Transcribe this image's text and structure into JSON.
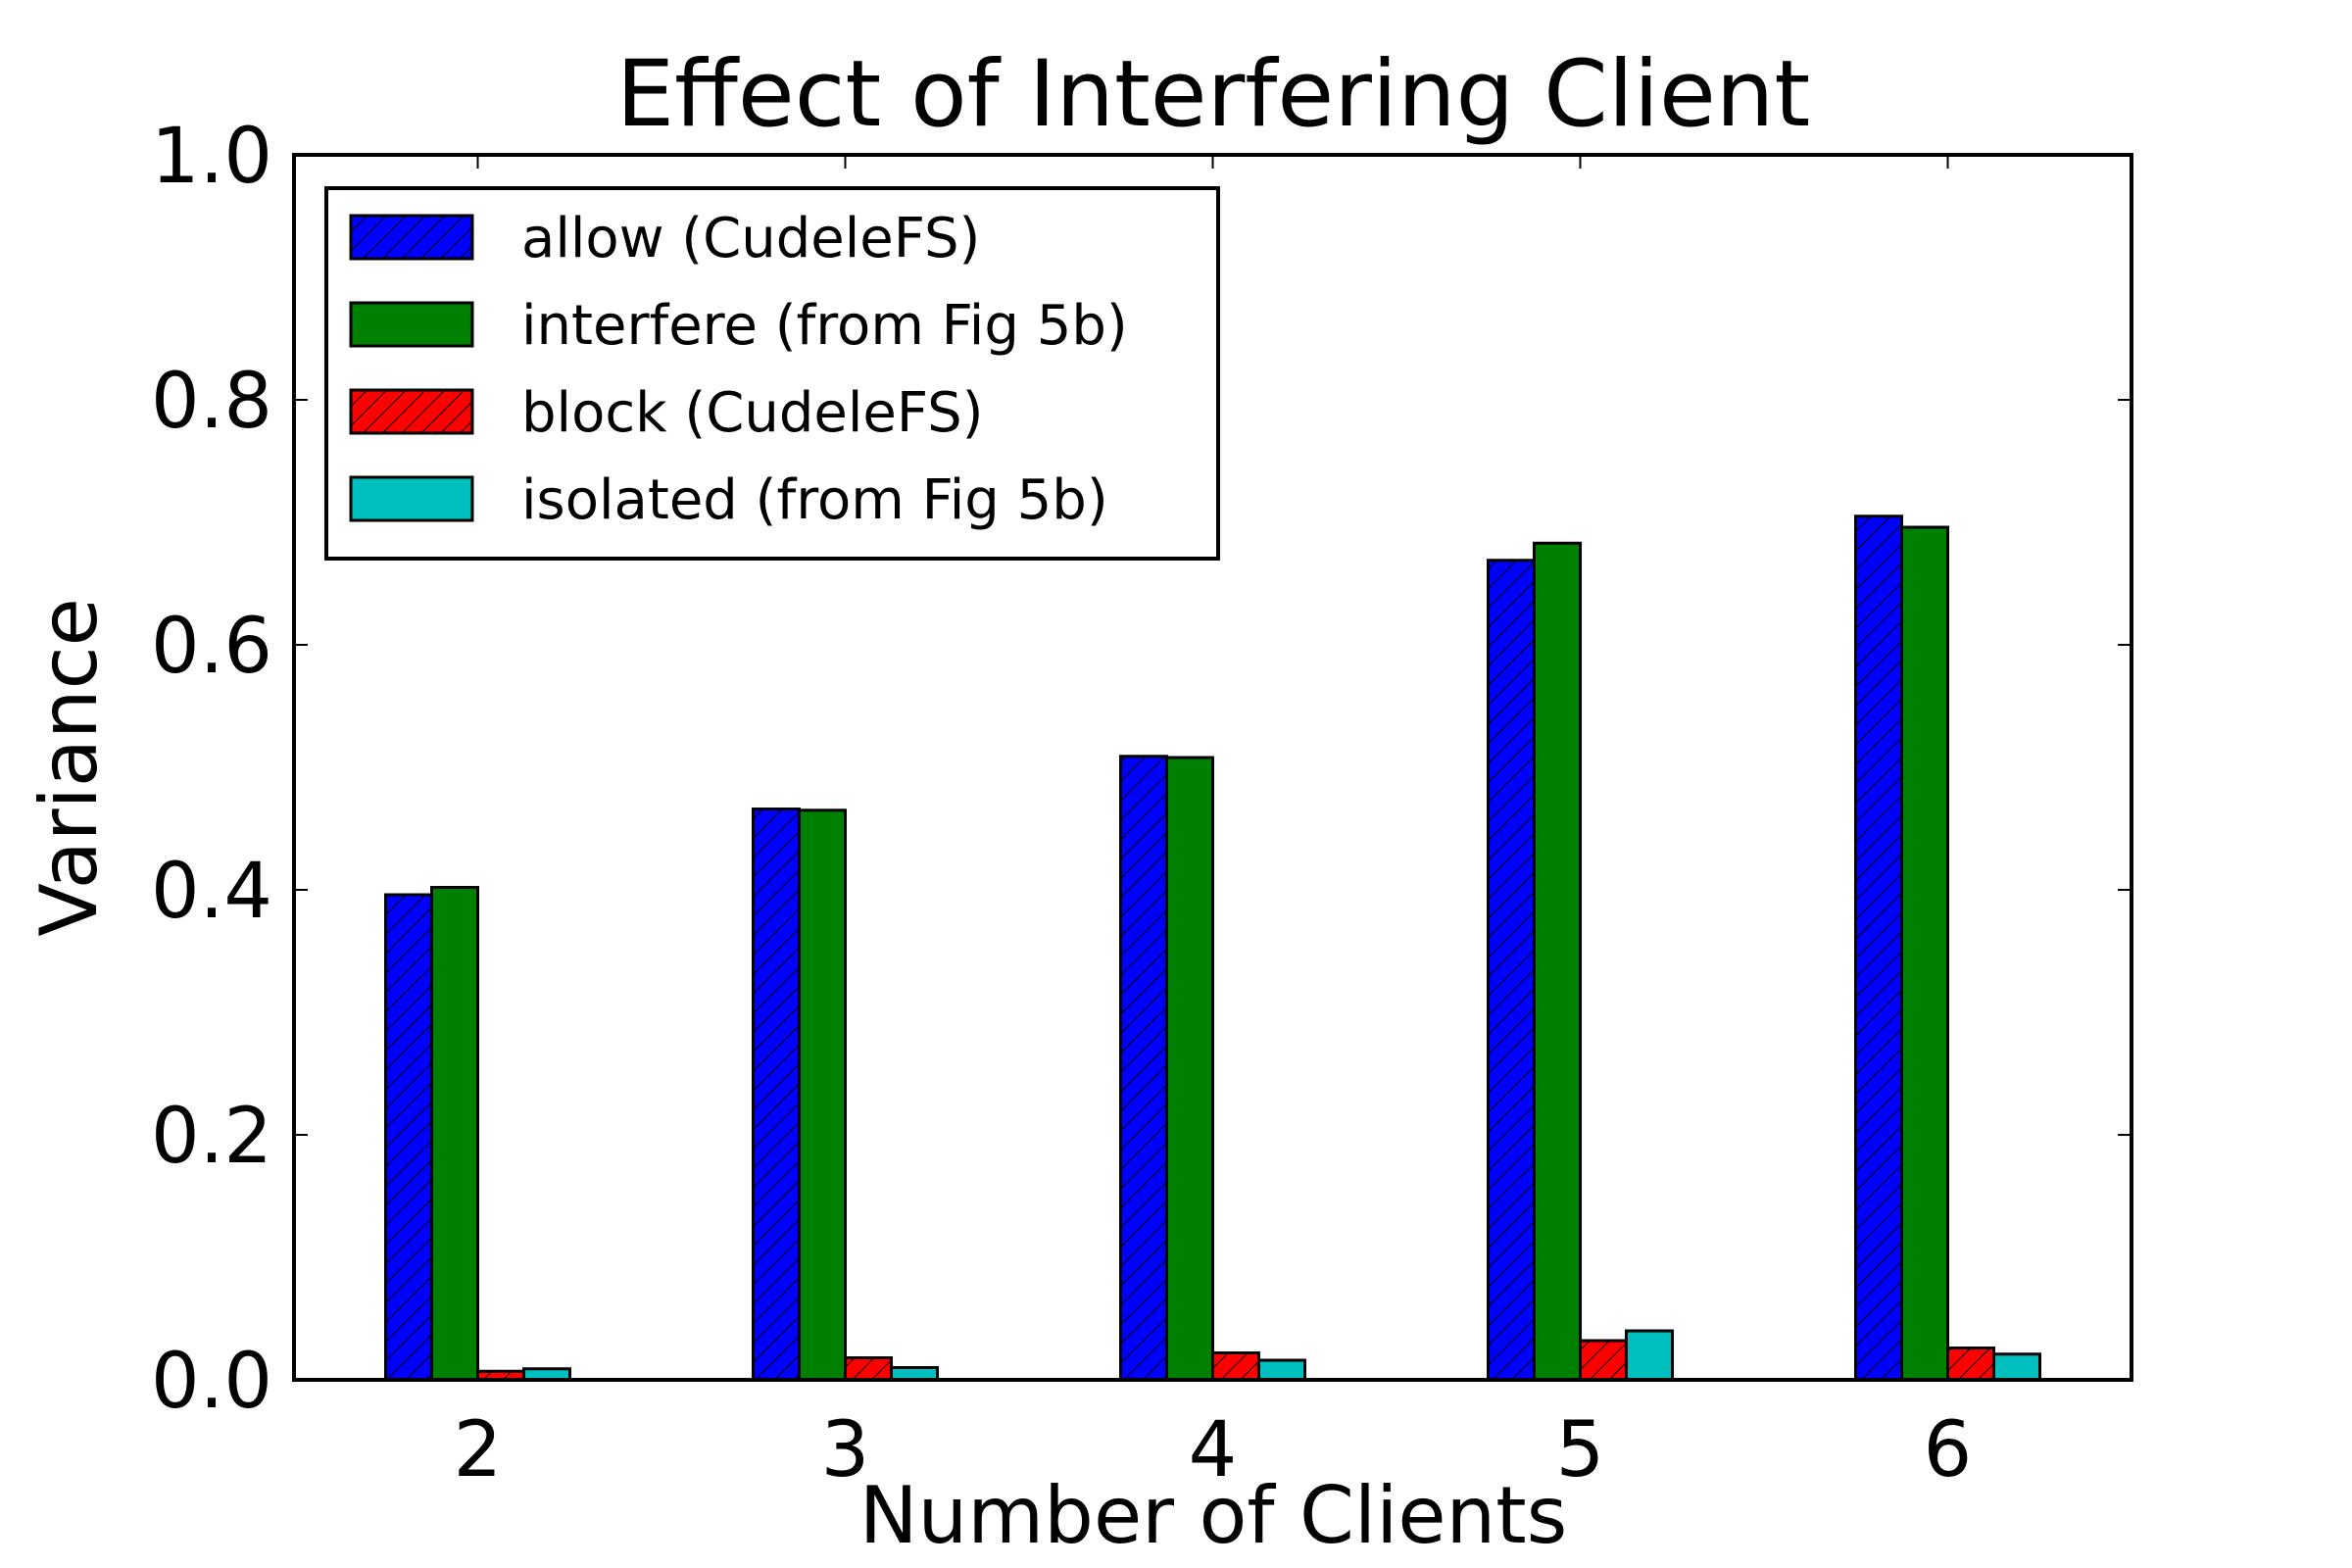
{
  "chart_data": {
    "type": "bar",
    "title": "Effect of Interfering Client",
    "xlabel": "Number of Clients",
    "ylabel": "Variance",
    "categories": [
      "2",
      "3",
      "4",
      "5",
      "6"
    ],
    "ylim": [
      0.0,
      1.0
    ],
    "yticks": [
      "0.0",
      "0.2",
      "0.4",
      "0.6",
      "0.8",
      "1.0"
    ],
    "grid": false,
    "legend_position": "top-left",
    "series": [
      {
        "name": "allow (CudeleFS)",
        "color": "#0000ff",
        "hatch": "diagonal",
        "values": [
          0.396,
          0.466,
          0.509,
          0.669,
          0.705
        ]
      },
      {
        "name": "interfere (from Fig 5b)",
        "color": "#008000",
        "hatch": "none",
        "values": [
          0.402,
          0.465,
          0.508,
          0.683,
          0.696
        ]
      },
      {
        "name": "block (CudeleFS)",
        "color": "#ff0000",
        "hatch": "diagonal",
        "values": [
          0.007,
          0.018,
          0.022,
          0.032,
          0.026
        ]
      },
      {
        "name": "isolated (from Fig 5b)",
        "color": "#00bfbf",
        "hatch": "none",
        "values": [
          0.009,
          0.01,
          0.016,
          0.04,
          0.021
        ]
      }
    ]
  }
}
